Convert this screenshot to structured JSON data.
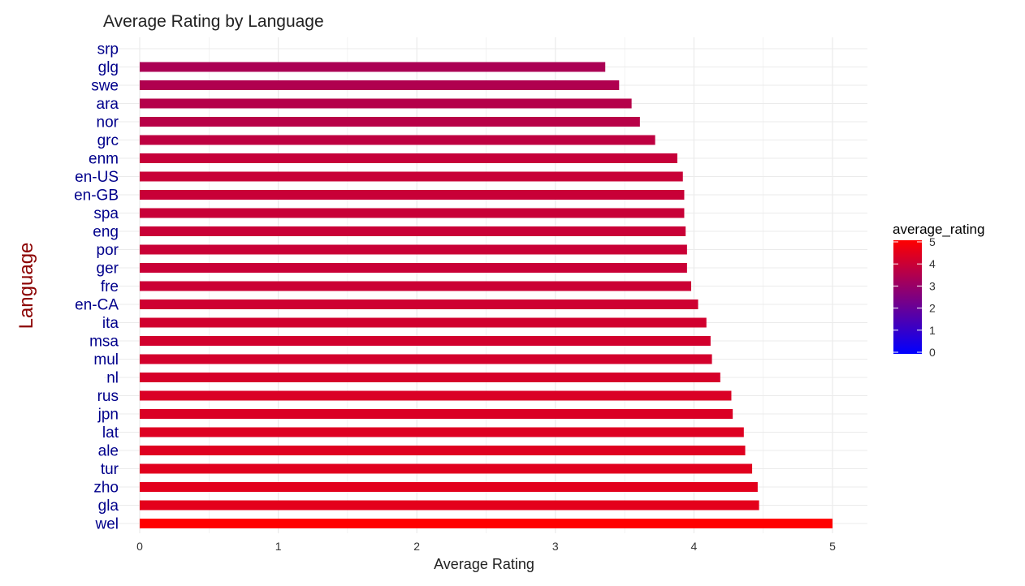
{
  "chart_data": {
    "type": "bar",
    "orientation": "horizontal",
    "title": "Average Rating by Language",
    "xlabel": "Average Rating",
    "ylabel": "Language",
    "xlim": [
      0,
      5
    ],
    "x_ticks": [
      "0",
      "1",
      "2",
      "3",
      "4",
      "5"
    ],
    "grid": true,
    "categories": [
      "srp",
      "glg",
      "swe",
      "ara",
      "nor",
      "grc",
      "enm",
      "en-US",
      "en-GB",
      "spa",
      "eng",
      "por",
      "ger",
      "fre",
      "en-CA",
      "ita",
      "msa",
      "mul",
      "nl",
      "rus",
      "jpn",
      "lat",
      "ale",
      "tur",
      "zho",
      "gla",
      "wel"
    ],
    "values": [
      0,
      3.36,
      3.46,
      3.55,
      3.61,
      3.72,
      3.88,
      3.92,
      3.93,
      3.93,
      3.94,
      3.95,
      3.95,
      3.98,
      4.03,
      4.09,
      4.12,
      4.13,
      4.19,
      4.27,
      4.28,
      4.36,
      4.37,
      4.42,
      4.46,
      4.47,
      5.0
    ],
    "legend": {
      "title": "average_rating",
      "placement": "right",
      "ticks": [
        "5",
        "4",
        "3",
        "2",
        "1",
        "0"
      ],
      "color_low": "#0000ff",
      "color_high": "#ff0000",
      "min": 0,
      "max": 5
    },
    "colors": {
      "title": "#222222",
      "y_tick": "#00008b",
      "y_label": "#8b0000",
      "x_tick": "#333333",
      "grid": "#ebebeb"
    }
  }
}
